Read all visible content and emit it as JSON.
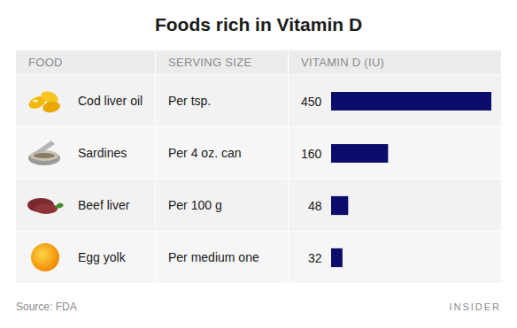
{
  "chart_data": {
    "type": "bar",
    "orientation": "horizontal",
    "title": "Foods rich in Vitamin D",
    "columns": [
      "FOOD",
      "SERVING SIZE",
      "VITAMIN D (IU)"
    ],
    "categories": [
      "Cod liver oil",
      "Sardines",
      "Beef liver",
      "Egg yolk"
    ],
    "serving_sizes": [
      "Per tsp.",
      "Per 4 oz. can",
      "Per 100 g",
      "Per medium one"
    ],
    "values": [
      450,
      160,
      48,
      32
    ],
    "color": "#0c0c6c",
    "xlim": [
      0,
      450
    ],
    "data_labels": true,
    "tick_labels": false,
    "grid": false,
    "source": "Source: FDA",
    "brand": "INSIDER"
  }
}
